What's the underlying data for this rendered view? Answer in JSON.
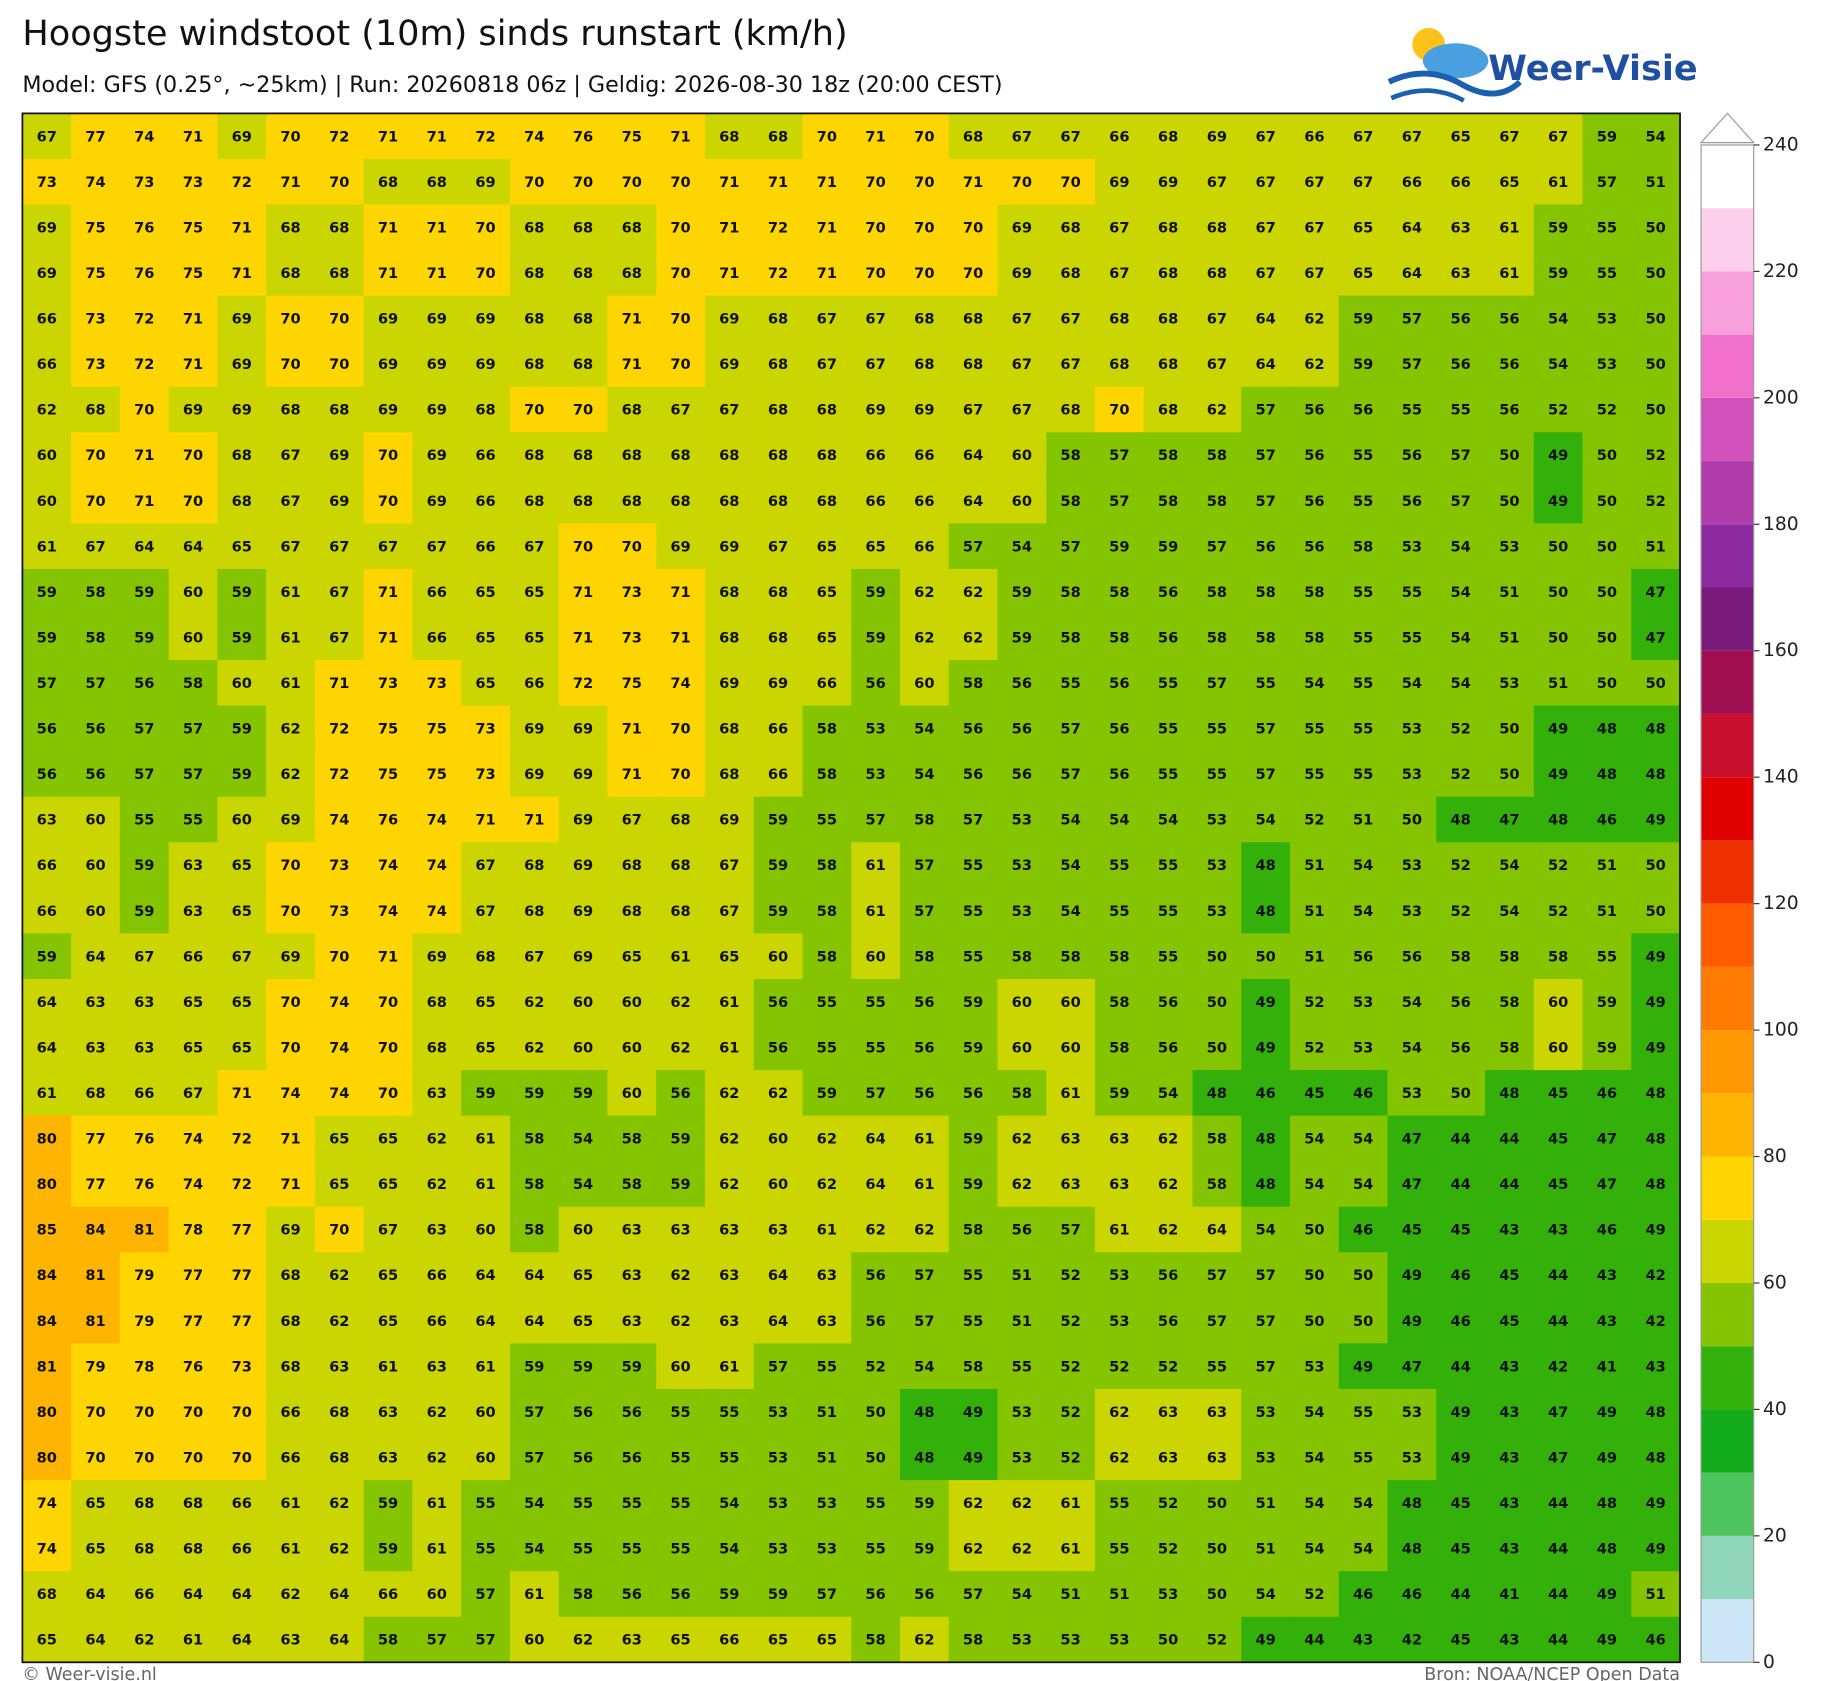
{
  "header": {
    "title": "Hoogste windstoot (10m) sinds runstart (km/h)",
    "subtitle": "Model: GFS (0.25°, ~25km)  |  Run: 20260818 06z  |  Geldig: 2026-08-30 18z (20:00 CEST)",
    "logo": "Weer-Visie"
  },
  "grid": {
    "rows": [
      [
        67,
        77,
        74,
        71,
        69,
        70,
        72,
        71,
        71,
        72,
        74,
        76,
        75,
        71,
        68,
        68,
        70,
        71,
        70,
        68,
        67,
        67,
        66,
        68,
        69,
        67,
        66,
        67,
        67,
        65,
        67,
        67,
        59,
        54
      ],
      [
        73,
        74,
        73,
        73,
        72,
        71,
        70,
        68,
        68,
        69,
        70,
        70,
        70,
        70,
        71,
        71,
        71,
        70,
        70,
        71,
        70,
        70,
        69,
        69,
        67,
        67,
        67,
        67,
        66,
        66,
        65,
        61,
        57,
        51
      ],
      [
        69,
        75,
        76,
        75,
        71,
        68,
        68,
        71,
        71,
        70,
        68,
        68,
        68,
        70,
        71,
        72,
        71,
        70,
        70,
        70,
        69,
        68,
        67,
        68,
        68,
        67,
        67,
        65,
        64,
        63,
        61,
        59,
        55,
        50
      ],
      [
        69,
        75,
        76,
        75,
        71,
        68,
        68,
        71,
        71,
        70,
        68,
        68,
        68,
        70,
        71,
        72,
        71,
        70,
        70,
        70,
        69,
        68,
        67,
        68,
        68,
        67,
        67,
        65,
        64,
        63,
        61,
        59,
        55,
        50
      ],
      [
        66,
        73,
        72,
        71,
        69,
        70,
        70,
        69,
        69,
        69,
        68,
        68,
        71,
        70,
        69,
        68,
        67,
        67,
        68,
        68,
        67,
        67,
        68,
        68,
        67,
        64,
        62,
        59,
        57,
        56,
        56,
        54,
        53,
        50
      ],
      [
        66,
        73,
        72,
        71,
        69,
        70,
        70,
        69,
        69,
        69,
        68,
        68,
        71,
        70,
        69,
        68,
        67,
        67,
        68,
        68,
        67,
        67,
        68,
        68,
        67,
        64,
        62,
        59,
        57,
        56,
        56,
        54,
        53,
        50
      ],
      [
        62,
        68,
        70,
        69,
        69,
        68,
        68,
        69,
        69,
        68,
        70,
        70,
        68,
        67,
        67,
        68,
        68,
        69,
        69,
        67,
        67,
        68,
        70,
        68,
        62,
        57,
        56,
        56,
        55,
        55,
        56,
        52,
        52,
        50
      ],
      [
        60,
        70,
        71,
        70,
        68,
        67,
        69,
        70,
        69,
        66,
        68,
        68,
        68,
        68,
        68,
        68,
        68,
        66,
        66,
        64,
        60,
        58,
        57,
        58,
        58,
        57,
        56,
        55,
        56,
        57,
        50,
        49,
        50,
        52
      ],
      [
        60,
        70,
        71,
        70,
        68,
        67,
        69,
        70,
        69,
        66,
        68,
        68,
        68,
        68,
        68,
        68,
        68,
        66,
        66,
        64,
        60,
        58,
        57,
        58,
        58,
        57,
        56,
        55,
        56,
        57,
        50,
        49,
        50,
        52
      ],
      [
        61,
        67,
        64,
        64,
        65,
        67,
        67,
        67,
        67,
        66,
        67,
        70,
        70,
        69,
        69,
        67,
        65,
        65,
        66,
        57,
        54,
        57,
        59,
        59,
        57,
        56,
        56,
        58,
        53,
        54,
        53,
        50,
        50,
        51
      ],
      [
        59,
        58,
        59,
        60,
        59,
        61,
        67,
        71,
        66,
        65,
        65,
        71,
        73,
        71,
        68,
        68,
        65,
        59,
        62,
        62,
        59,
        58,
        58,
        56,
        58,
        58,
        58,
        55,
        55,
        54,
        51,
        50,
        50,
        47
      ],
      [
        59,
        58,
        59,
        60,
        59,
        61,
        67,
        71,
        66,
        65,
        65,
        71,
        73,
        71,
        68,
        68,
        65,
        59,
        62,
        62,
        59,
        58,
        58,
        56,
        58,
        58,
        58,
        55,
        55,
        54,
        51,
        50,
        50,
        47
      ],
      [
        57,
        57,
        56,
        58,
        60,
        61,
        71,
        73,
        73,
        65,
        66,
        72,
        75,
        74,
        69,
        69,
        66,
        56,
        60,
        58,
        56,
        55,
        56,
        55,
        57,
        55,
        54,
        55,
        54,
        54,
        53,
        51,
        50,
        50
      ],
      [
        56,
        56,
        57,
        57,
        59,
        62,
        72,
        75,
        75,
        73,
        69,
        69,
        71,
        70,
        68,
        66,
        58,
        53,
        54,
        56,
        56,
        57,
        56,
        55,
        55,
        57,
        55,
        55,
        53,
        52,
        50,
        49,
        48,
        48
      ],
      [
        56,
        56,
        57,
        57,
        59,
        62,
        72,
        75,
        75,
        73,
        69,
        69,
        71,
        70,
        68,
        66,
        58,
        53,
        54,
        56,
        56,
        57,
        56,
        55,
        55,
        57,
        55,
        55,
        53,
        52,
        50,
        49,
        48,
        48
      ],
      [
        63,
        60,
        55,
        55,
        60,
        69,
        74,
        76,
        74,
        71,
        71,
        69,
        67,
        68,
        69,
        59,
        55,
        57,
        58,
        57,
        53,
        54,
        54,
        54,
        53,
        54,
        52,
        51,
        50,
        48,
        47,
        48,
        46,
        49
      ],
      [
        66,
        60,
        59,
        63,
        65,
        70,
        73,
        74,
        74,
        67,
        68,
        69,
        68,
        68,
        67,
        59,
        58,
        61,
        57,
        55,
        53,
        54,
        55,
        55,
        53,
        48,
        51,
        54,
        53,
        52,
        54,
        52,
        51,
        50
      ],
      [
        66,
        60,
        59,
        63,
        65,
        70,
        73,
        74,
        74,
        67,
        68,
        69,
        68,
        68,
        67,
        59,
        58,
        61,
        57,
        55,
        53,
        54,
        55,
        55,
        53,
        48,
        51,
        54,
        53,
        52,
        54,
        52,
        51,
        50
      ],
      [
        59,
        64,
        67,
        66,
        67,
        69,
        70,
        71,
        69,
        68,
        67,
        69,
        65,
        61,
        65,
        60,
        58,
        60,
        58,
        55,
        58,
        58,
        58,
        55,
        50,
        50,
        51,
        56,
        56,
        58,
        58,
        58,
        55,
        49
      ],
      [
        64,
        63,
        63,
        65,
        65,
        70,
        74,
        70,
        68,
        65,
        62,
        60,
        60,
        62,
        61,
        56,
        55,
        55,
        56,
        59,
        60,
        60,
        58,
        56,
        50,
        49,
        52,
        53,
        54,
        56,
        58,
        60,
        59,
        49
      ],
      [
        64,
        63,
        63,
        65,
        65,
        70,
        74,
        70,
        68,
        65,
        62,
        60,
        60,
        62,
        61,
        56,
        55,
        55,
        56,
        59,
        60,
        60,
        58,
        56,
        50,
        49,
        52,
        53,
        54,
        56,
        58,
        60,
        59,
        49
      ],
      [
        61,
        68,
        66,
        67,
        71,
        74,
        74,
        70,
        63,
        59,
        59,
        59,
        60,
        56,
        62,
        62,
        59,
        57,
        56,
        56,
        58,
        61,
        59,
        54,
        48,
        46,
        45,
        46,
        53,
        50,
        48,
        45,
        46,
        48
      ],
      [
        80,
        77,
        76,
        74,
        72,
        71,
        65,
        65,
        62,
        61,
        58,
        54,
        58,
        59,
        62,
        60,
        62,
        64,
        61,
        59,
        62,
        63,
        63,
        62,
        58,
        48,
        54,
        54,
        47,
        44,
        44,
        45,
        47,
        48
      ],
      [
        80,
        77,
        76,
        74,
        72,
        71,
        65,
        65,
        62,
        61,
        58,
        54,
        58,
        59,
        62,
        60,
        62,
        64,
        61,
        59,
        62,
        63,
        63,
        62,
        58,
        48,
        54,
        54,
        47,
        44,
        44,
        45,
        47,
        48
      ],
      [
        85,
        84,
        81,
        78,
        77,
        69,
        70,
        67,
        63,
        60,
        58,
        60,
        63,
        63,
        63,
        63,
        61,
        62,
        62,
        58,
        56,
        57,
        61,
        62,
        64,
        54,
        50,
        46,
        45,
        45,
        43,
        43,
        46,
        49
      ],
      [
        84,
        81,
        79,
        77,
        77,
        68,
        62,
        65,
        66,
        64,
        64,
        65,
        63,
        62,
        63,
        64,
        63,
        56,
        57,
        55,
        51,
        52,
        53,
        56,
        57,
        57,
        50,
        50,
        49,
        46,
        45,
        44,
        43,
        42
      ],
      [
        84,
        81,
        79,
        77,
        77,
        68,
        62,
        65,
        66,
        64,
        64,
        65,
        63,
        62,
        63,
        64,
        63,
        56,
        57,
        55,
        51,
        52,
        53,
        56,
        57,
        57,
        50,
        50,
        49,
        46,
        45,
        44,
        43,
        42
      ],
      [
        81,
        79,
        78,
        76,
        73,
        68,
        63,
        61,
        63,
        61,
        59,
        59,
        59,
        60,
        61,
        57,
        55,
        52,
        54,
        58,
        55,
        52,
        52,
        52,
        55,
        57,
        53,
        49,
        47,
        44,
        43,
        42,
        41,
        43
      ],
      [
        80,
        70,
        70,
        70,
        70,
        66,
        68,
        63,
        62,
        60,
        57,
        56,
        56,
        55,
        55,
        53,
        51,
        50,
        48,
        49,
        53,
        52,
        62,
        63,
        63,
        53,
        54,
        55,
        53,
        49,
        43,
        47,
        49,
        48
      ],
      [
        80,
        70,
        70,
        70,
        70,
        66,
        68,
        63,
        62,
        60,
        57,
        56,
        56,
        55,
        55,
        53,
        51,
        50,
        48,
        49,
        53,
        52,
        62,
        63,
        63,
        53,
        54,
        55,
        53,
        49,
        43,
        47,
        49,
        48
      ],
      [
        74,
        65,
        68,
        68,
        66,
        61,
        62,
        59,
        61,
        55,
        54,
        55,
        55,
        55,
        54,
        53,
        53,
        55,
        59,
        62,
        62,
        61,
        55,
        52,
        50,
        51,
        54,
        54,
        48,
        45,
        43,
        44,
        48,
        49
      ],
      [
        74,
        65,
        68,
        68,
        66,
        61,
        62,
        59,
        61,
        55,
        54,
        55,
        55,
        55,
        54,
        53,
        53,
        55,
        59,
        62,
        62,
        61,
        55,
        52,
        50,
        51,
        54,
        54,
        48,
        45,
        43,
        44,
        48,
        49
      ],
      [
        68,
        64,
        66,
        64,
        64,
        62,
        64,
        66,
        60,
        57,
        61,
        58,
        56,
        56,
        59,
        59,
        57,
        56,
        56,
        57,
        54,
        51,
        51,
        53,
        50,
        54,
        52,
        46,
        46,
        44,
        41,
        44,
        49,
        51
      ],
      [
        65,
        64,
        62,
        61,
        64,
        63,
        64,
        58,
        57,
        57,
        60,
        62,
        63,
        65,
        66,
        65,
        65,
        58,
        62,
        58,
        53,
        53,
        53,
        50,
        52,
        49,
        44,
        43,
        42,
        45,
        43,
        44,
        49,
        46
      ]
    ]
  },
  "colorbar": {
    "ylim": [
      0,
      240
    ],
    "yticks": [
      0,
      20,
      40,
      60,
      80,
      100,
      120,
      140,
      160,
      180,
      200,
      220,
      240
    ],
    "levels": [
      0,
      10,
      20,
      30,
      40,
      50,
      60,
      70,
      80,
      90,
      100,
      110,
      120,
      130,
      140,
      150,
      160,
      170,
      180,
      190,
      200,
      210,
      220,
      230,
      240
    ],
    "colors": [
      "#cde6f7",
      "#8fd6bd",
      "#4dc45c",
      "#12ac1d",
      "#34b00a",
      "#84c400",
      "#cbd600",
      "#ffd500",
      "#ffb400",
      "#ff9800",
      "#ff7a00",
      "#ff5c00",
      "#ee3000",
      "#e00000",
      "#c8102e",
      "#a01050",
      "#7a1a7a",
      "#8a2a9e",
      "#b03cac",
      "#d050bc",
      "#f070cc",
      "#f8a0dc",
      "#fcd0ec",
      "#ffffff"
    ]
  },
  "footer": {
    "left": "© Weer-visie.nl",
    "right": "Bron: NOAA/NCEP Open Data"
  }
}
